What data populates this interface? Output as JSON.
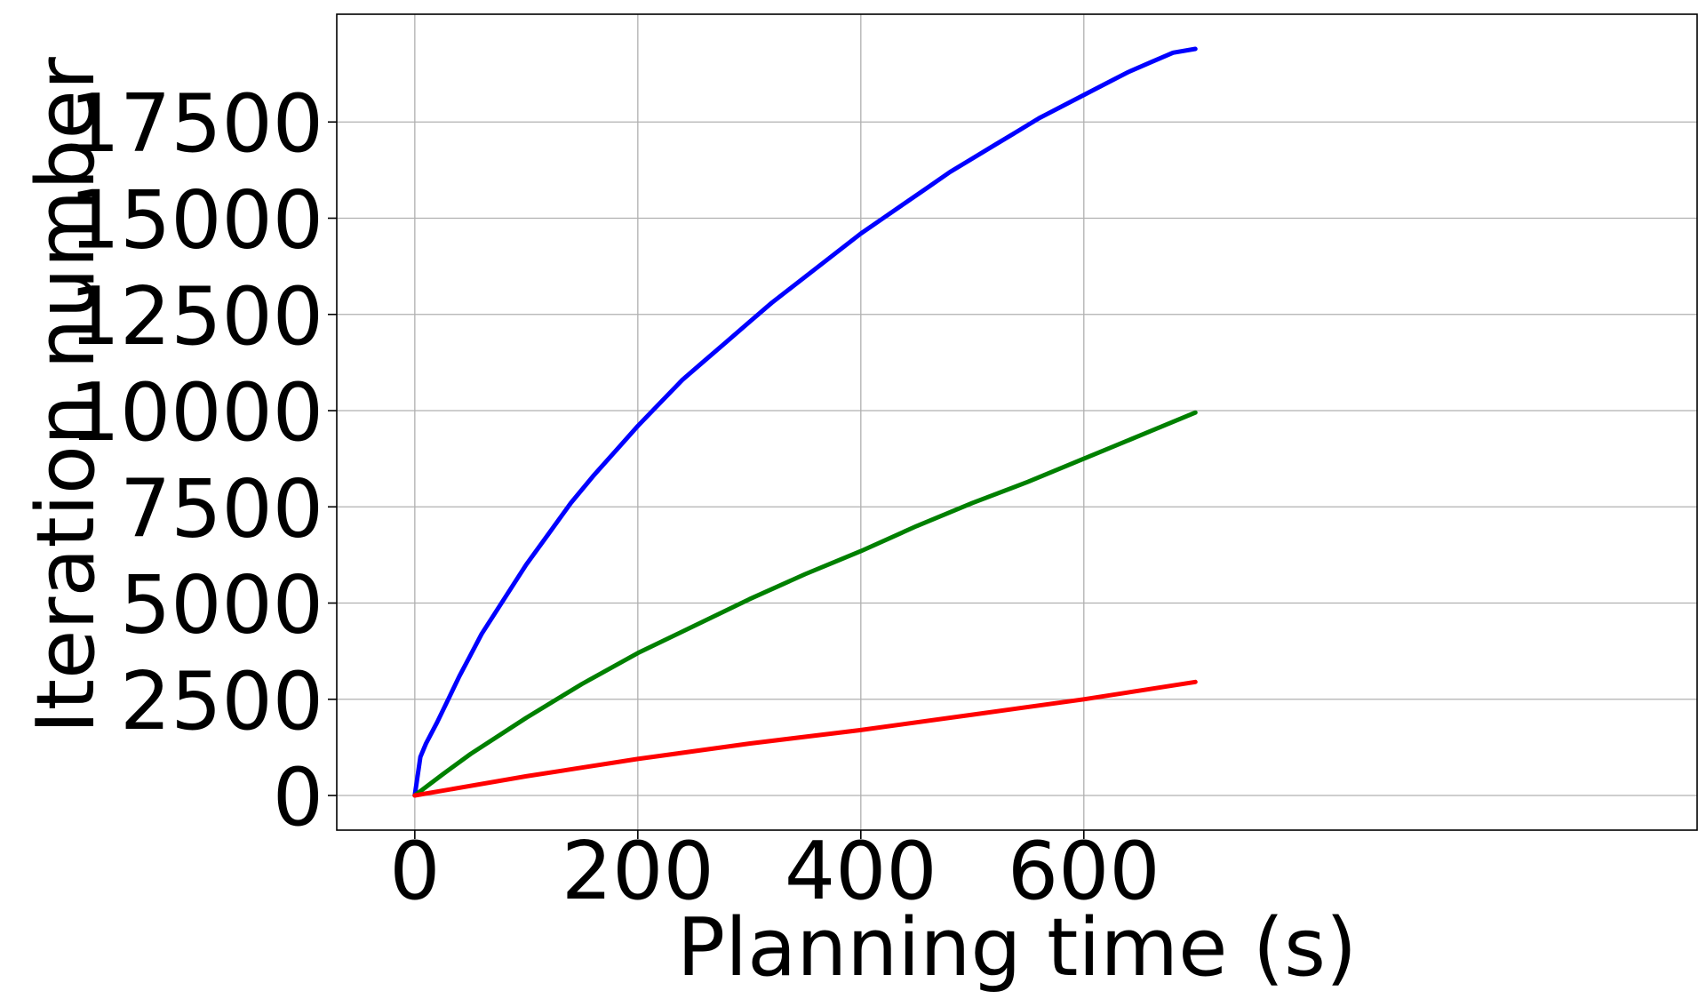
{
  "chart_data": {
    "type": "line",
    "title": "",
    "xlabel": "Planning time (s)",
    "ylabel": "Iteration number",
    "xlim": [
      -70,
      1150
    ],
    "ylim": [
      -900,
      20300
    ],
    "xticks": [
      0,
      200,
      400,
      600
    ],
    "yticks": [
      0,
      2500,
      5000,
      7500,
      10000,
      12500,
      15000,
      17500
    ],
    "grid": true,
    "legend": "none",
    "series": [
      {
        "color": "#0000ff",
        "x": [
          0,
          5,
          10,
          20,
          30,
          40,
          50,
          60,
          80,
          100,
          120,
          140,
          160,
          180,
          200,
          220,
          240,
          260,
          280,
          300,
          320,
          340,
          360,
          380,
          400,
          420,
          440,
          460,
          480,
          500,
          520,
          540,
          560,
          580,
          600,
          620,
          640,
          660,
          680,
          700
        ],
        "values": [
          0,
          1000,
          1350,
          1900,
          2500,
          3100,
          3650,
          4200,
          5100,
          6000,
          6800,
          7600,
          8300,
          8950,
          9600,
          10200,
          10800,
          11300,
          11800,
          12300,
          12800,
          13250,
          13700,
          14150,
          14600,
          15000,
          15400,
          15800,
          16200,
          16550,
          16900,
          17250,
          17600,
          17900,
          18200,
          18500,
          18800,
          19050,
          19300,
          19400
        ]
      },
      {
        "color": "#008000",
        "x": [
          0,
          25,
          50,
          100,
          150,
          200,
          250,
          300,
          350,
          400,
          450,
          500,
          550,
          600,
          650,
          700
        ],
        "values": [
          0,
          550,
          1080,
          2020,
          2900,
          3700,
          4400,
          5100,
          5750,
          6350,
          7000,
          7600,
          8150,
          8750,
          9350,
          9950
        ]
      },
      {
        "color": "#ff0000",
        "x": [
          0,
          100,
          200,
          300,
          400,
          500,
          600,
          700
        ],
        "values": [
          0,
          500,
          950,
          1350,
          1700,
          2100,
          2500,
          2950
        ]
      }
    ]
  }
}
